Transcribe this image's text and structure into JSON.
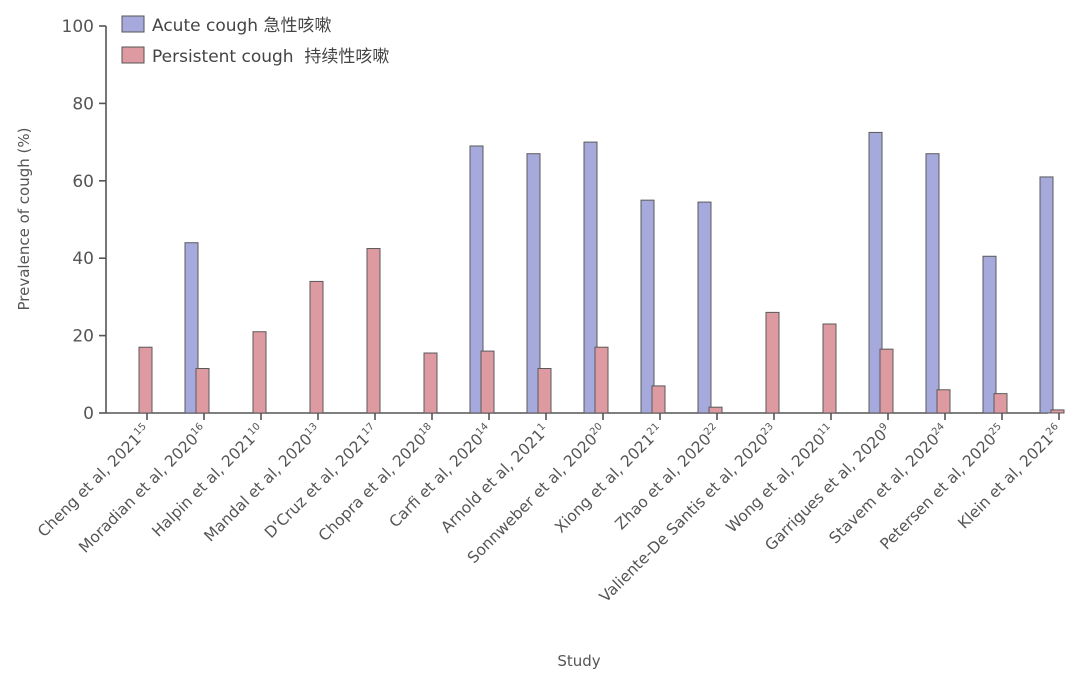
{
  "chart_data": {
    "type": "bar",
    "ylabel": "Prevalence of cough (%)",
    "xlabel": "Study",
    "ylim": [
      0,
      100
    ],
    "yticks": [
      0,
      20,
      40,
      60,
      80,
      100
    ],
    "grid": false,
    "legend_position": "top-left",
    "categories": [
      {
        "name": "Cheng et al, 2021",
        "ref": "15"
      },
      {
        "name": "Moradian et al, 2020",
        "ref": "16"
      },
      {
        "name": "Halpin et al, 2021",
        "ref": "10"
      },
      {
        "name": "Mandal et al, 2020",
        "ref": "13"
      },
      {
        "name": "D'Cruz et al, 2021",
        "ref": "17"
      },
      {
        "name": "Chopra et al, 2020",
        "ref": "18"
      },
      {
        "name": "Carfi et al, 2020",
        "ref": "14"
      },
      {
        "name": "Arnold et al, 2021",
        "ref": "1"
      },
      {
        "name": "Sonnweber et al, 2020",
        "ref": "20"
      },
      {
        "name": "Xiong et al, 2021",
        "ref": "21"
      },
      {
        "name": "Zhao et al, 2020",
        "ref": "22"
      },
      {
        "name": "Valiente-De Santis et al, 2020",
        "ref": "23"
      },
      {
        "name": "Wong et al, 2020",
        "ref": "11"
      },
      {
        "name": "Garrigues et al, 2020",
        "ref": "9"
      },
      {
        "name": "Stavem et al, 2020",
        "ref": "24"
      },
      {
        "name": "Petersen et al, 2020",
        "ref": "25"
      },
      {
        "name": "Klein et al, 2021",
        "ref": "26"
      }
    ],
    "series": [
      {
        "name": "Acute cough 急性咳嗽",
        "color": "#a6a9dc",
        "values": [
          null,
          44,
          null,
          null,
          null,
          null,
          69,
          67,
          70,
          55,
          54.5,
          null,
          null,
          72.5,
          67,
          40.5,
          61
        ]
      },
      {
        "name": "Persistent cough  持续性咳嗽",
        "color": "#dd9aa0",
        "values": [
          17,
          11.5,
          21,
          34,
          42.5,
          15.5,
          16,
          11.5,
          17,
          7,
          1.5,
          26,
          23,
          16.5,
          6,
          5,
          0.8
        ]
      }
    ]
  }
}
